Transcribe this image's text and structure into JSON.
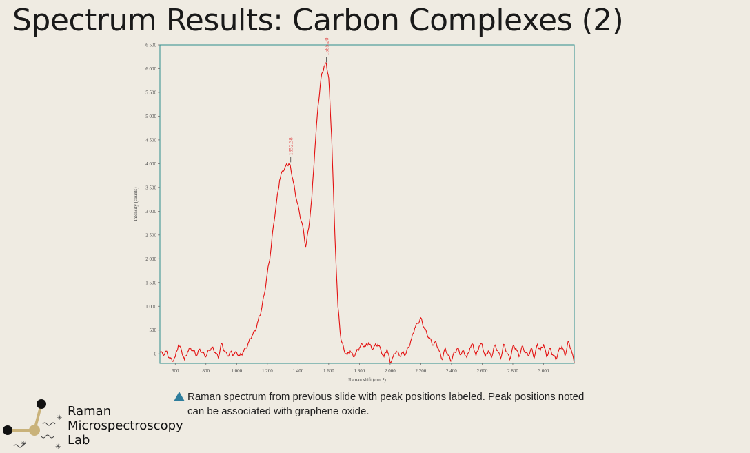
{
  "slide": {
    "title": "Spectrum Results: Carbon Complexes (2)",
    "caption": "Raman spectrum from previous slide with peak positions labeled. Peak positions noted can be associated with graphene oxide."
  },
  "logo": {
    "line1": "Raman",
    "line2": "Microspectroscopy",
    "line3": "Lab"
  },
  "chart_data": {
    "type": "line",
    "xlabel": "Raman shift (cm⁻¹)",
    "ylabel": "Intensity (counts)",
    "xlim": [
      500,
      3200
    ],
    "ylim": [
      -200,
      6500
    ],
    "xticks": [
      600,
      800,
      1000,
      1200,
      1400,
      1600,
      1800,
      2000,
      2200,
      2400,
      2600,
      2800,
      3000
    ],
    "xtick_labels": [
      "600",
      "800",
      "1 000",
      "1 200",
      "1 400",
      "1 600",
      "1 800",
      "2 000",
      "2 200",
      "2 400",
      "2 600",
      "2 800",
      "3 000"
    ],
    "yticks": [
      0,
      500,
      1000,
      1500,
      2000,
      2500,
      3000,
      3500,
      4000,
      4500,
      5000,
      5500,
      6000,
      6500
    ],
    "ytick_labels": [
      "0",
      "500",
      "1 000",
      "1 500",
      "2 000",
      "2 500",
      "3 000",
      "3 500",
      "4 000",
      "4 500",
      "5 000",
      "5 500",
      "6 000",
      "6 500"
    ],
    "grid": false,
    "line_color": "#e31010",
    "frame_color": "#2e8c8c",
    "peaks": [
      {
        "x": 1352.38,
        "y": 4000,
        "label": "1352.38"
      },
      {
        "x": 1585.2,
        "y": 6100,
        "label": "1585.20"
      }
    ],
    "series": [
      {
        "x": [
          500,
          520,
          540,
          560,
          580,
          600,
          620,
          640,
          660,
          680,
          700,
          720,
          740,
          760,
          780,
          800,
          820,
          840,
          860,
          880,
          900,
          920,
          940,
          960,
          980,
          1000,
          1020,
          1040,
          1060,
          1080,
          1100,
          1120,
          1140,
          1160,
          1180,
          1200,
          1220,
          1240,
          1260,
          1280,
          1300,
          1320,
          1340,
          1352,
          1370,
          1390,
          1410,
          1430,
          1450,
          1470,
          1490,
          1510,
          1530,
          1550,
          1570,
          1585,
          1600,
          1620,
          1640,
          1660,
          1680,
          1700,
          1720,
          1740,
          1760,
          1780,
          1800,
          1820,
          1840,
          1860,
          1880,
          1900,
          1920,
          1940,
          1960,
          1980,
          2000,
          2020,
          2040,
          2060,
          2080,
          2100,
          2120,
          2140,
          2160,
          2180,
          2200,
          2220,
          2240,
          2260,
          2280,
          2300,
          2320,
          2340,
          2360,
          2380,
          2400,
          2420,
          2440,
          2460,
          2480,
          2500,
          2520,
          2540,
          2560,
          2580,
          2600,
          2620,
          2640,
          2660,
          2680,
          2700,
          2720,
          2740,
          2760,
          2780,
          2800,
          2820,
          2840,
          2860,
          2880,
          2900,
          2920,
          2940,
          2960,
          2980,
          3000,
          3020,
          3040,
          3060,
          3080,
          3100,
          3120,
          3140,
          3160,
          3180,
          3200
        ],
        "y": [
          50,
          -20,
          60,
          -80,
          -150,
          -60,
          180,
          80,
          -120,
          40,
          120,
          60,
          -40,
          100,
          20,
          -60,
          80,
          140,
          30,
          -80,
          220,
          60,
          -40,
          40,
          -20,
          30,
          -40,
          20,
          120,
          260,
          380,
          480,
          700,
          900,
          1250,
          1700,
          2100,
          2700,
          3200,
          3650,
          3850,
          3950,
          4000,
          3920,
          3600,
          3250,
          2950,
          2700,
          2250,
          2650,
          3300,
          4300,
          5200,
          5800,
          6050,
          6100,
          5800,
          4500,
          2500,
          1000,
          300,
          80,
          -20,
          60,
          -60,
          40,
          130,
          200,
          160,
          230,
          110,
          170,
          200,
          80,
          -60,
          100,
          -180,
          -60,
          60,
          -40,
          30,
          -20,
          140,
          320,
          540,
          640,
          760,
          560,
          420,
          320,
          180,
          240,
          60,
          -120,
          120,
          -40,
          -150,
          40,
          120,
          -20,
          60,
          -80,
          120,
          200,
          -40,
          160,
          200,
          -60,
          60,
          -80,
          180,
          80,
          -100,
          200,
          40,
          -120,
          160,
          120,
          -60,
          160,
          40,
          -40,
          120,
          -80,
          200,
          80,
          200,
          -60,
          120,
          -20,
          -120,
          80,
          160,
          -40,
          260,
          100,
          -200
        ]
      }
    ]
  }
}
